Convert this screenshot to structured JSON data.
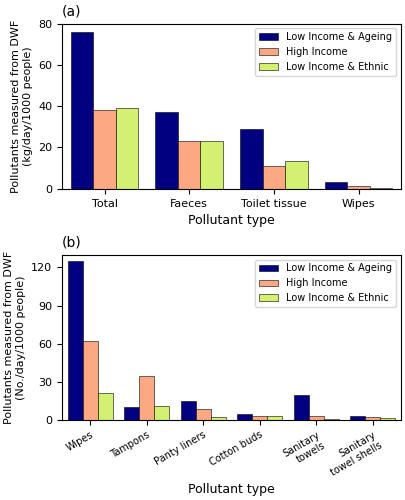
{
  "chart_data": [
    {
      "type": "bar",
      "title": "(a)",
      "categories": [
        "Total",
        "Faeces",
        "Toilet tissue",
        "Wipes"
      ],
      "series": [
        {
          "name": "Low Income & Ageing",
          "color": "#000080",
          "values": [
            76,
            37,
            29,
            3.5
          ]
        },
        {
          "name": "High Income",
          "color": "#FCA882",
          "values": [
            38,
            23,
            11,
            1.2
          ]
        },
        {
          "name": "Low Income & Ethnic",
          "color": "#D4F070",
          "values": [
            39,
            23,
            13.5,
            0.5
          ]
        }
      ],
      "xlabel": "Pollutant type",
      "ylabel": "Pollutants measured from DWF\n(kg/day/1000 people)",
      "ylim": [
        0,
        80
      ],
      "yticks": [
        0,
        20,
        40,
        60,
        80
      ],
      "legend": "upper right"
    },
    {
      "type": "bar",
      "title": "(b)",
      "categories": [
        "Wipes",
        "Tampons",
        "Panty liners",
        "Cotton buds",
        "Sanitary\ntowels",
        "Sanitary\ntowel shells"
      ],
      "series": [
        {
          "name": "Low Income & Ageing",
          "color": "#000080",
          "values": [
            125,
            10,
            15,
            5,
            20,
            3
          ]
        },
        {
          "name": "High Income",
          "color": "#FCA882",
          "values": [
            62,
            35,
            9,
            3,
            3,
            2
          ]
        },
        {
          "name": "Low Income & Ethnic",
          "color": "#D4F070",
          "values": [
            21,
            11,
            2.5,
            3.5,
            1,
            1.5
          ]
        }
      ],
      "xlabel": "Pollutant type",
      "ylabel": "Pollutants measured from DWF\n(No./day/1000 people)",
      "ylim": [
        0,
        130
      ],
      "yticks": [
        0,
        30,
        60,
        90,
        120
      ],
      "legend": "upper right"
    }
  ]
}
